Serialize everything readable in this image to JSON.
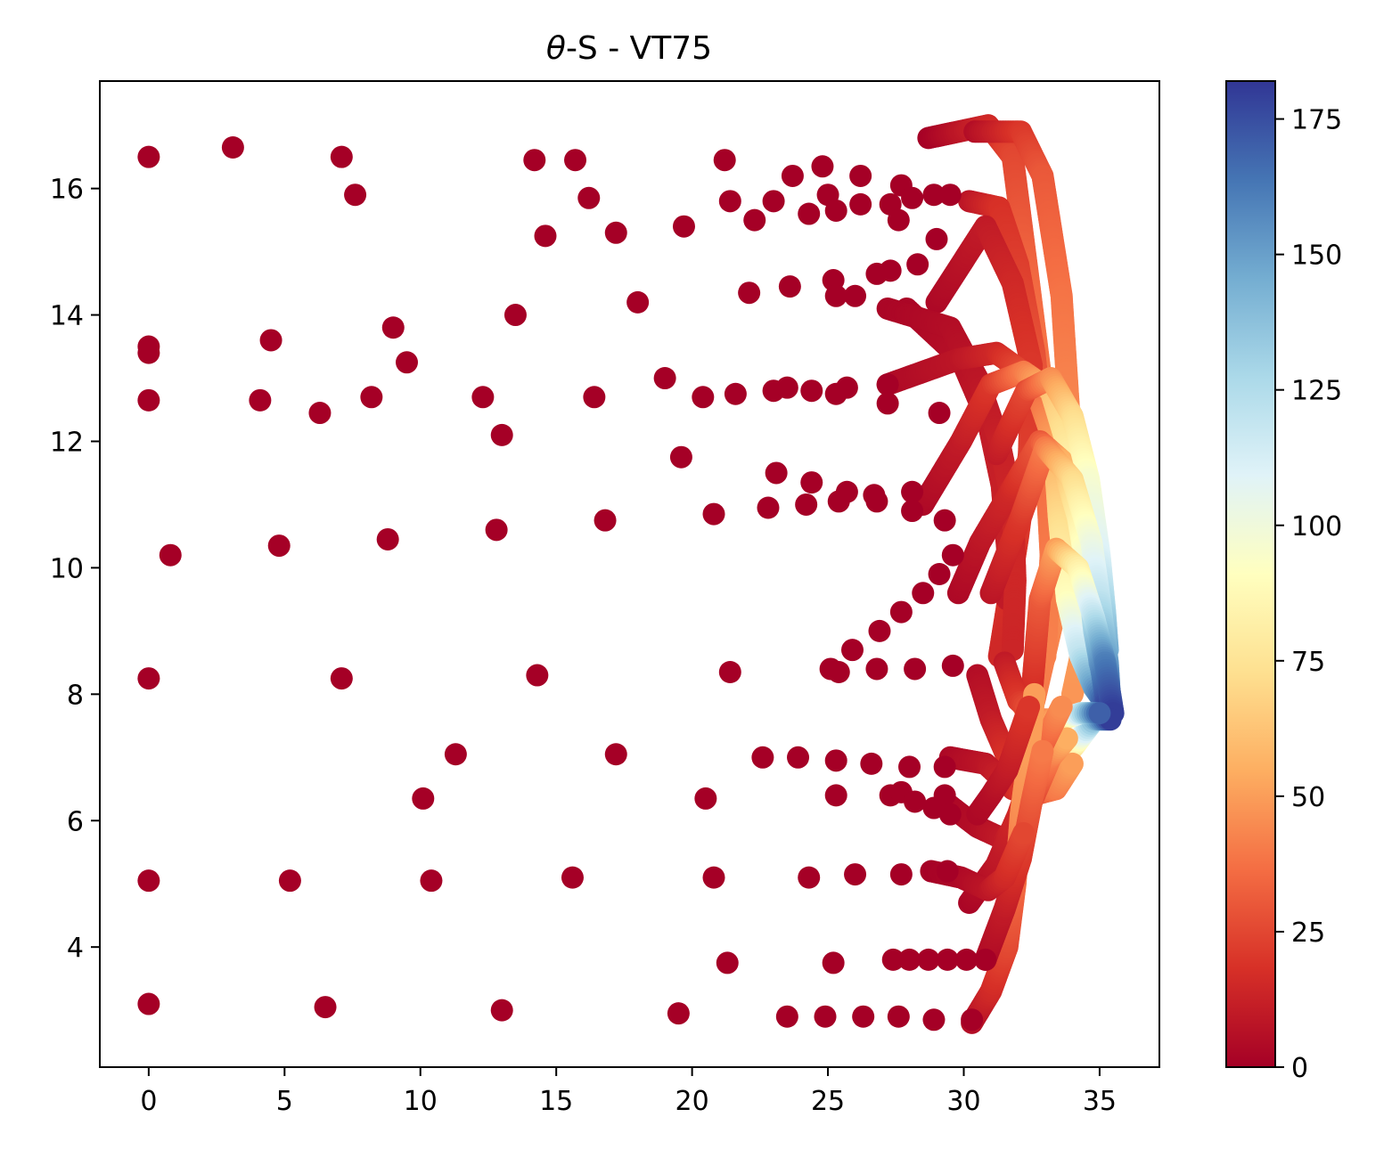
{
  "chart_data": {
    "type": "scatter",
    "title": "θ-S - VT75",
    "title_prefix": "θ",
    "title_suffix": "-S - VT75",
    "xlabel": "",
    "ylabel": "",
    "xlim": [
      -1.8,
      37.2
    ],
    "ylim": [
      2.1,
      17.7
    ],
    "x_ticks": [
      0,
      5,
      10,
      15,
      20,
      25,
      30,
      35
    ],
    "y_ticks": [
      4,
      6,
      8,
      10,
      12,
      14,
      16
    ],
    "grid": false,
    "legend": "none",
    "colorbar": {
      "label": "",
      "range": [
        0,
        182
      ],
      "ticks": [
        0,
        25,
        50,
        75,
        100,
        125,
        150,
        175
      ],
      "colormap": "RdYlBu",
      "stops": [
        "#a50026",
        "#d73027",
        "#f46d43",
        "#fdae61",
        "#fee090",
        "#ffffbf",
        "#e0f3f8",
        "#abd9e9",
        "#74add1",
        "#4575b4",
        "#313695"
      ]
    },
    "scatter_points": [
      [
        0.0,
        16.5
      ],
      [
        3.1,
        16.65
      ],
      [
        7.1,
        16.5
      ],
      [
        7.6,
        15.9
      ],
      [
        14.2,
        16.45
      ],
      [
        15.7,
        16.45
      ],
      [
        16.2,
        15.85
      ],
      [
        14.6,
        15.25
      ],
      [
        17.2,
        15.3
      ],
      [
        19.7,
        15.4
      ],
      [
        21.2,
        16.45
      ],
      [
        21.4,
        15.8
      ],
      [
        22.3,
        15.5
      ],
      [
        23.0,
        15.8
      ],
      [
        23.7,
        16.2
      ],
      [
        24.8,
        16.35
      ],
      [
        24.3,
        15.6
      ],
      [
        25.0,
        15.9
      ],
      [
        25.3,
        15.65
      ],
      [
        26.2,
        16.2
      ],
      [
        26.2,
        15.75
      ],
      [
        27.3,
        15.75
      ],
      [
        27.7,
        16.05
      ],
      [
        28.1,
        15.85
      ],
      [
        28.9,
        15.9
      ],
      [
        29.5,
        15.9
      ],
      [
        27.6,
        15.5
      ],
      [
        0.0,
        13.5
      ],
      [
        0.0,
        13.4
      ],
      [
        4.5,
        13.6
      ],
      [
        9.0,
        13.8
      ],
      [
        9.5,
        13.25
      ],
      [
        13.5,
        14.0
      ],
      [
        18.0,
        14.2
      ],
      [
        22.1,
        14.35
      ],
      [
        23.6,
        14.45
      ],
      [
        25.2,
        14.55
      ],
      [
        25.3,
        14.3
      ],
      [
        26.0,
        14.3
      ],
      [
        26.8,
        14.65
      ],
      [
        27.3,
        14.7
      ],
      [
        28.3,
        14.8
      ],
      [
        29.0,
        15.2
      ],
      [
        0.0,
        12.65
      ],
      [
        4.1,
        12.65
      ],
      [
        6.3,
        12.45
      ],
      [
        8.2,
        12.7
      ],
      [
        12.3,
        12.7
      ],
      [
        13.0,
        12.1
      ],
      [
        16.4,
        12.7
      ],
      [
        19.0,
        13.0
      ],
      [
        20.4,
        12.7
      ],
      [
        21.6,
        12.75
      ],
      [
        23.0,
        12.8
      ],
      [
        23.5,
        12.85
      ],
      [
        24.4,
        12.8
      ],
      [
        25.3,
        12.75
      ],
      [
        25.7,
        12.85
      ],
      [
        27.2,
        12.9
      ],
      [
        27.2,
        12.6
      ],
      [
        29.1,
        12.45
      ],
      [
        19.6,
        11.75
      ],
      [
        23.1,
        11.5
      ],
      [
        24.4,
        11.35
      ],
      [
        25.7,
        11.2
      ],
      [
        25.4,
        11.05
      ],
      [
        26.7,
        11.15
      ],
      [
        26.8,
        11.05
      ],
      [
        28.1,
        11.2
      ],
      [
        28.1,
        10.9
      ],
      [
        29.3,
        10.75
      ],
      [
        0.8,
        10.2
      ],
      [
        4.8,
        10.35
      ],
      [
        8.8,
        10.45
      ],
      [
        12.8,
        10.6
      ],
      [
        16.8,
        10.75
      ],
      [
        20.8,
        10.85
      ],
      [
        22.8,
        10.95
      ],
      [
        24.2,
        11.0
      ],
      [
        0.0,
        8.25
      ],
      [
        7.1,
        8.25
      ],
      [
        14.3,
        8.3
      ],
      [
        21.4,
        8.35
      ],
      [
        25.1,
        8.4
      ],
      [
        25.4,
        8.35
      ],
      [
        25.9,
        8.7
      ],
      [
        26.8,
        8.4
      ],
      [
        27.7,
        9.3
      ],
      [
        28.2,
        8.4
      ],
      [
        29.6,
        8.45
      ],
      [
        28.5,
        9.6
      ],
      [
        29.1,
        9.9
      ],
      [
        29.6,
        10.2
      ],
      [
        26.9,
        9.0
      ],
      [
        11.3,
        7.05
      ],
      [
        17.2,
        7.05
      ],
      [
        22.6,
        7.0
      ],
      [
        23.9,
        7.0
      ],
      [
        25.3,
        6.95
      ],
      [
        26.6,
        6.9
      ],
      [
        28.0,
        6.85
      ],
      [
        29.3,
        6.85
      ],
      [
        10.1,
        6.35
      ],
      [
        20.5,
        6.35
      ],
      [
        25.3,
        6.4
      ],
      [
        27.3,
        6.4
      ],
      [
        27.7,
        6.45
      ],
      [
        28.2,
        6.3
      ],
      [
        28.9,
        6.2
      ],
      [
        29.3,
        6.4
      ],
      [
        29.5,
        6.1
      ],
      [
        0.0,
        5.05
      ],
      [
        5.2,
        5.05
      ],
      [
        10.4,
        5.05
      ],
      [
        15.6,
        5.1
      ],
      [
        20.8,
        5.1
      ],
      [
        24.3,
        5.1
      ],
      [
        26.0,
        5.15
      ],
      [
        27.7,
        5.15
      ],
      [
        29.4,
        5.2
      ],
      [
        21.3,
        3.75
      ],
      [
        25.2,
        3.75
      ],
      [
        27.4,
        3.8
      ],
      [
        28.0,
        3.8
      ],
      [
        28.7,
        3.8
      ],
      [
        29.4,
        3.8
      ],
      [
        30.1,
        3.8
      ],
      [
        30.8,
        3.8
      ],
      [
        0.0,
        3.1
      ],
      [
        6.5,
        3.05
      ],
      [
        13.0,
        3.0
      ],
      [
        19.5,
        2.95
      ],
      [
        23.5,
        2.9
      ],
      [
        24.9,
        2.9
      ],
      [
        26.3,
        2.9
      ],
      [
        27.6,
        2.9
      ],
      [
        28.9,
        2.85
      ],
      [
        30.3,
        2.85
      ]
    ],
    "tracks": [
      {
        "points": [
          [
            28.7,
            16.8
          ],
          [
            30.9,
            17.0
          ],
          [
            31.8,
            16.5
          ],
          [
            32.4,
            14.5
          ],
          [
            32.9,
            12.8
          ],
          [
            33.3,
            11.0
          ],
          [
            33.3,
            9.2
          ],
          [
            32.6,
            7.9
          ]
        ],
        "values": [
          0,
          15,
          25,
          35,
          40,
          45,
          45,
          40
        ]
      },
      {
        "points": [
          [
            30.4,
            16.9
          ],
          [
            32.1,
            16.9
          ],
          [
            32.9,
            16.2
          ],
          [
            33.6,
            14.3
          ],
          [
            33.9,
            12.3
          ],
          [
            34.3,
            10.5
          ],
          [
            34.4,
            8.8
          ],
          [
            34.0,
            8.0
          ]
        ],
        "values": [
          5,
          20,
          30,
          38,
          44,
          48,
          50,
          48
        ]
      },
      {
        "points": [
          [
            30.2,
            15.8
          ],
          [
            31.3,
            15.7
          ],
          [
            32.0,
            14.8
          ],
          [
            32.6,
            13.4
          ],
          [
            33.0,
            11.8
          ],
          [
            33.2,
            10.2
          ],
          [
            33.0,
            8.6
          ],
          [
            32.2,
            7.8
          ]
        ],
        "values": [
          8,
          18,
          22,
          28,
          35,
          40,
          42,
          40
        ]
      },
      {
        "points": [
          [
            29.0,
            14.2
          ],
          [
            30.8,
            15.4
          ],
          [
            31.8,
            14.5
          ],
          [
            32.5,
            13.2
          ],
          [
            32.4,
            11.8
          ],
          [
            32.0,
            10.5
          ],
          [
            31.6,
            9.4
          ],
          [
            31.3,
            8.6
          ]
        ],
        "values": [
          3,
          10,
          15,
          20,
          22,
          20,
          18,
          15
        ]
      },
      {
        "points": [
          [
            27.9,
            14.1
          ],
          [
            29.9,
            13.3
          ],
          [
            30.9,
            12.3
          ],
          [
            31.4,
            11.3
          ],
          [
            31.6,
            10.3
          ],
          [
            31.6,
            9.5
          ]
        ],
        "values": [
          2,
          6,
          10,
          12,
          12,
          10
        ]
      },
      {
        "points": [
          [
            27.2,
            14.1
          ],
          [
            29.5,
            13.8
          ],
          [
            30.5,
            13.0
          ],
          [
            31.3,
            12.0
          ],
          [
            31.8,
            11.0
          ],
          [
            31.9,
            9.8
          ],
          [
            31.8,
            8.7
          ]
        ],
        "values": [
          2,
          5,
          8,
          12,
          14,
          15,
          14
        ]
      },
      {
        "points": [
          [
            27.2,
            12.9
          ],
          [
            29.8,
            13.3
          ],
          [
            31.2,
            13.4
          ],
          [
            32.5,
            13.0
          ],
          [
            33.3,
            12.0
          ],
          [
            33.5,
            10.8
          ],
          [
            33.8,
            9.5
          ],
          [
            34.3,
            8.6
          ],
          [
            34.8,
            8.1
          ],
          [
            35.3,
            7.8
          ]
        ],
        "values": [
          3,
          8,
          15,
          30,
          50,
          70,
          90,
          120,
          150,
          178
        ]
      },
      {
        "points": [
          [
            28.5,
            11.0
          ],
          [
            29.9,
            12.0
          ],
          [
            31.0,
            12.9
          ],
          [
            32.2,
            13.1
          ],
          [
            33.2,
            12.8
          ],
          [
            33.9,
            11.8
          ],
          [
            34.5,
            10.6
          ],
          [
            34.8,
            9.5
          ],
          [
            35.0,
            8.5
          ],
          [
            35.4,
            7.9
          ]
        ],
        "values": [
          3,
          10,
          20,
          40,
          60,
          80,
          100,
          120,
          150,
          180
        ]
      },
      {
        "points": [
          [
            29.8,
            9.6
          ],
          [
            30.6,
            10.4
          ],
          [
            31.7,
            11.2
          ],
          [
            32.8,
            12.0
          ],
          [
            33.6,
            11.7
          ],
          [
            34.2,
            10.8
          ],
          [
            34.6,
            9.8
          ],
          [
            34.8,
            9.0
          ],
          [
            35.1,
            8.3
          ],
          [
            35.3,
            7.7
          ]
        ],
        "values": [
          3,
          8,
          15,
          30,
          55,
          80,
          105,
          130,
          160,
          180
        ]
      },
      {
        "points": [
          [
            31.2,
            11.8
          ],
          [
            32.3,
            12.8
          ],
          [
            33.2,
            13.0
          ],
          [
            34.0,
            12.4
          ],
          [
            34.6,
            11.4
          ],
          [
            35.0,
            10.2
          ],
          [
            35.2,
            9.3
          ],
          [
            35.3,
            8.7
          ]
        ],
        "values": [
          10,
          25,
          45,
          70,
          95,
          110,
          130,
          145
        ]
      },
      {
        "points": [
          [
            31.0,
            9.6
          ],
          [
            32.1,
            10.8
          ],
          [
            33.0,
            11.9
          ],
          [
            34.0,
            11.4
          ],
          [
            34.7,
            10.4
          ],
          [
            35.0,
            9.5
          ],
          [
            35.3,
            8.5
          ],
          [
            35.4,
            7.8
          ]
        ],
        "values": [
          8,
          20,
          40,
          70,
          100,
          120,
          150,
          178
        ]
      },
      {
        "points": [
          [
            32.5,
            8.0
          ],
          [
            32.8,
            9.5
          ],
          [
            33.4,
            10.3
          ],
          [
            34.2,
            10.0
          ],
          [
            34.8,
            9.2
          ],
          [
            35.2,
            8.5
          ],
          [
            35.5,
            7.7
          ]
        ],
        "values": [
          15,
          30,
          50,
          80,
          120,
          160,
          180
        ]
      },
      {
        "points": [
          [
            30.5,
            8.3
          ],
          [
            31.0,
            7.6
          ],
          [
            31.6,
            7.0
          ],
          [
            32.4,
            6.7
          ],
          [
            33.3,
            6.8
          ],
          [
            34.1,
            7.2
          ],
          [
            34.8,
            7.6
          ],
          [
            35.4,
            7.6
          ]
        ],
        "values": [
          5,
          10,
          18,
          30,
          45,
          80,
          140,
          180
        ]
      },
      {
        "points": [
          [
            31.5,
            8.5
          ],
          [
            32.0,
            7.9
          ],
          [
            32.8,
            7.6
          ],
          [
            33.6,
            7.6
          ],
          [
            34.3,
            7.7
          ],
          [
            35.0,
            7.7
          ]
        ],
        "values": [
          10,
          20,
          35,
          60,
          120,
          170
        ]
      },
      {
        "points": [
          [
            29.5,
            7.0
          ],
          [
            30.8,
            6.9
          ],
          [
            31.8,
            6.5
          ],
          [
            32.5,
            6.4
          ],
          [
            33.4,
            6.5
          ],
          [
            34.0,
            6.9
          ]
        ],
        "values": [
          3,
          8,
          15,
          25,
          40,
          50
        ]
      },
      {
        "points": [
          [
            29.3,
            6.3
          ],
          [
            30.5,
            5.9
          ],
          [
            31.5,
            5.7
          ],
          [
            32.5,
            6.3
          ],
          [
            33.2,
            7.0
          ],
          [
            33.8,
            7.3
          ]
        ],
        "values": [
          2,
          5,
          10,
          22,
          40,
          55
        ]
      },
      {
        "points": [
          [
            30.2,
            4.7
          ],
          [
            31.2,
            5.3
          ],
          [
            32.0,
            6.1
          ],
          [
            32.8,
            7.1
          ],
          [
            33.6,
            7.8
          ]
        ],
        "values": [
          2,
          8,
          15,
          28,
          45
        ]
      },
      {
        "points": [
          [
            30.3,
            2.8
          ],
          [
            31.0,
            3.3
          ],
          [
            31.6,
            4.0
          ],
          [
            31.9,
            5.0
          ],
          [
            32.1,
            6.1
          ],
          [
            32.4,
            7.1
          ],
          [
            32.6,
            8.0
          ]
        ],
        "values": [
          5,
          15,
          25,
          35,
          45,
          50,
          50
        ]
      },
      {
        "points": [
          [
            30.8,
            3.8
          ],
          [
            31.5,
            4.6
          ],
          [
            32.1,
            5.4
          ],
          [
            32.5,
            6.3
          ],
          [
            32.9,
            7.1
          ]
        ],
        "values": [
          3,
          10,
          20,
          30,
          40
        ]
      },
      {
        "points": [
          [
            28.8,
            5.2
          ],
          [
            29.9,
            5.1
          ],
          [
            30.9,
            4.9
          ],
          [
            31.5,
            5.1
          ],
          [
            32.2,
            5.8
          ]
        ],
        "values": [
          0,
          3,
          8,
          15,
          25
        ]
      },
      {
        "points": [
          [
            30.5,
            6.1
          ],
          [
            31.0,
            6.4
          ],
          [
            31.6,
            6.8
          ],
          [
            32.0,
            7.3
          ],
          [
            32.4,
            7.8
          ]
        ],
        "values": [
          3,
          5,
          10,
          15,
          20
        ]
      }
    ]
  }
}
